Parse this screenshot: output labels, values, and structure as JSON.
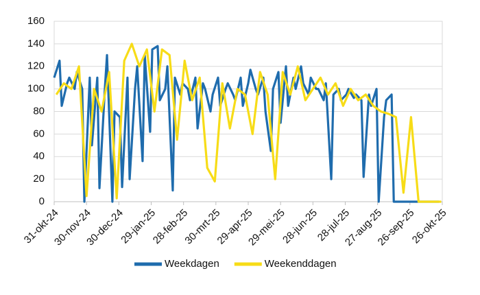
{
  "chart_data": {
    "type": "line",
    "xlim": [
      "31-okt-24",
      "26-okt-25"
    ],
    "xticks": [
      "31-okt-24",
      "30-nov-24",
      "30-dec-24",
      "29-jan-25",
      "28-feb-25",
      "30-mrt-25",
      "29-apr-25",
      "29-mei-25",
      "28-jun-25",
      "28-jul-25",
      "27-aug-25",
      "26-sep-25",
      "26-okt-25"
    ],
    "ylim": [
      0,
      160
    ],
    "yticks": [
      0,
      20,
      40,
      60,
      80,
      100,
      120,
      140,
      160
    ],
    "grid": true,
    "legend": "bottom",
    "series": [
      {
        "name": "Weekdagen",
        "color": "#1f6cad",
        "x": [
          "31-okt-24",
          "5-nov-24",
          "7-nov-24",
          "12-nov-24",
          "14-nov-24",
          "19-nov-24",
          "21-nov-24",
          "26-nov-24",
          "28-nov-24",
          "3-dec-24",
          "5-dec-24",
          "10-dec-24",
          "12-dec-24",
          "17-dec-24",
          "19-dec-24",
          "24-dec-24",
          "26-dec-24",
          "31-dec-24",
          "2-jan-25",
          "7-jan-25",
          "9-jan-25",
          "14-jan-25",
          "16-jan-25",
          "21-jan-25",
          "23-jan-25",
          "28-jan-25",
          "30-jan-25",
          "4-feb-25",
          "6-feb-25",
          "11-feb-25",
          "13-feb-25",
          "18-feb-25",
          "20-feb-25",
          "25-feb-25",
          "27-feb-25",
          "4-mrt-25",
          "6-mrt-25",
          "11-mrt-25",
          "13-mrt-25",
          "18-mrt-25",
          "20-mrt-25",
          "25-mrt-25",
          "27-mrt-25",
          "1-apr-25",
          "3-apr-25",
          "8-apr-25",
          "10-apr-25",
          "15-apr-25",
          "17-apr-25",
          "22-apr-25",
          "24-apr-25",
          "29-apr-25",
          "1-mei-25",
          "6-mei-25",
          "8-mei-25",
          "13-mei-25",
          "15-mei-25",
          "20-mei-25",
          "22-mei-25",
          "27-mei-25",
          "29-mei-25",
          "3-jun-25",
          "5-jun-25",
          "10-jun-25",
          "12-jun-25",
          "17-jun-25",
          "19-jun-25",
          "24-jun-25",
          "26-jun-25",
          "1-jul-25",
          "3-jul-25",
          "8-jul-25",
          "10-jul-25",
          "15-jul-25",
          "17-jul-25",
          "22-jul-25",
          "24-jul-25",
          "29-jul-25",
          "31-jul-25",
          "5-aug-25",
          "7-aug-25",
          "12-aug-25",
          "14-aug-25",
          "19-aug-25",
          "21-aug-25",
          "26-aug-25",
          "28-aug-25",
          "2-sep-25",
          "4-sep-25",
          "9-sep-25",
          "11-sep-25",
          "16-sep-25",
          "18-sep-25",
          "23-sep-25",
          "25-sep-25",
          "30-sep-25",
          "2-okt-25",
          "7-okt-25",
          "9-okt-25",
          "14-okt-25",
          "16-okt-25",
          "21-okt-25",
          "23-okt-25"
        ],
        "values": [
          110,
          125,
          85,
          105,
          110,
          100,
          115,
          100,
          0,
          110,
          50,
          110,
          12,
          100,
          130,
          0,
          80,
          75,
          13,
          110,
          20,
          100,
          120,
          36,
          130,
          62,
          135,
          138,
          90,
          100,
          120,
          10,
          110,
          95,
          105,
          100,
          90,
          110,
          65,
          105,
          100,
          80,
          95,
          110,
          85,
          100,
          105,
          95,
          90,
          110,
          85,
          105,
          117,
          100,
          95,
          110,
          80,
          45,
          100,
          115,
          70,
          120,
          85,
          110,
          100,
          120,
          105,
          95,
          110,
          100,
          100,
          90,
          105,
          20,
          95,
          100,
          90,
          95,
          100,
          92,
          95,
          90,
          22,
          95,
          85,
          100,
          0,
          75,
          90,
          95,
          0,
          0,
          0,
          0,
          0,
          0,
          0,
          0,
          0,
          0,
          0,
          0,
          0
        ]
      },
      {
        "name": "Weekenddagen",
        "color": "#f7dc17",
        "x": [
          "2-nov-24",
          "9-nov-24",
          "16-nov-24",
          "23-nov-24",
          "30-nov-24",
          "7-dec-24",
          "14-dec-24",
          "21-dec-24",
          "28-dec-24",
          "4-jan-25",
          "11-jan-25",
          "18-jan-25",
          "25-jan-25",
          "1-feb-25",
          "8-feb-25",
          "15-feb-25",
          "22-feb-25",
          "1-mrt-25",
          "8-mrt-25",
          "15-mrt-25",
          "22-mrt-25",
          "29-mrt-25",
          "5-apr-25",
          "12-apr-25",
          "19-apr-25",
          "26-apr-25",
          "3-mei-25",
          "10-mei-25",
          "17-mei-25",
          "24-mei-25",
          "31-mei-25",
          "7-jun-25",
          "14-jun-25",
          "21-jun-25",
          "28-jun-25",
          "5-jul-25",
          "12-jul-25",
          "19-jul-25",
          "26-jul-25",
          "2-aug-25",
          "9-aug-25",
          "16-aug-25",
          "23-aug-25",
          "30-aug-25",
          "6-sep-25",
          "13-sep-25",
          "20-sep-25",
          "27-sep-25",
          "4-okt-25",
          "11-okt-25",
          "18-okt-25",
          "25-okt-25"
        ],
        "values": [
          95,
          105,
          100,
          120,
          5,
          100,
          80,
          115,
          3,
          125,
          140,
          120,
          135,
          80,
          135,
          130,
          55,
          125,
          90,
          110,
          30,
          18,
          105,
          65,
          100,
          95,
          60,
          115,
          95,
          20,
          115,
          95,
          120,
          90,
          100,
          110,
          95,
          105,
          85,
          100,
          90,
          95,
          85,
          80,
          78,
          75,
          8,
          75,
          0,
          0,
          0,
          0
        ]
      }
    ]
  }
}
